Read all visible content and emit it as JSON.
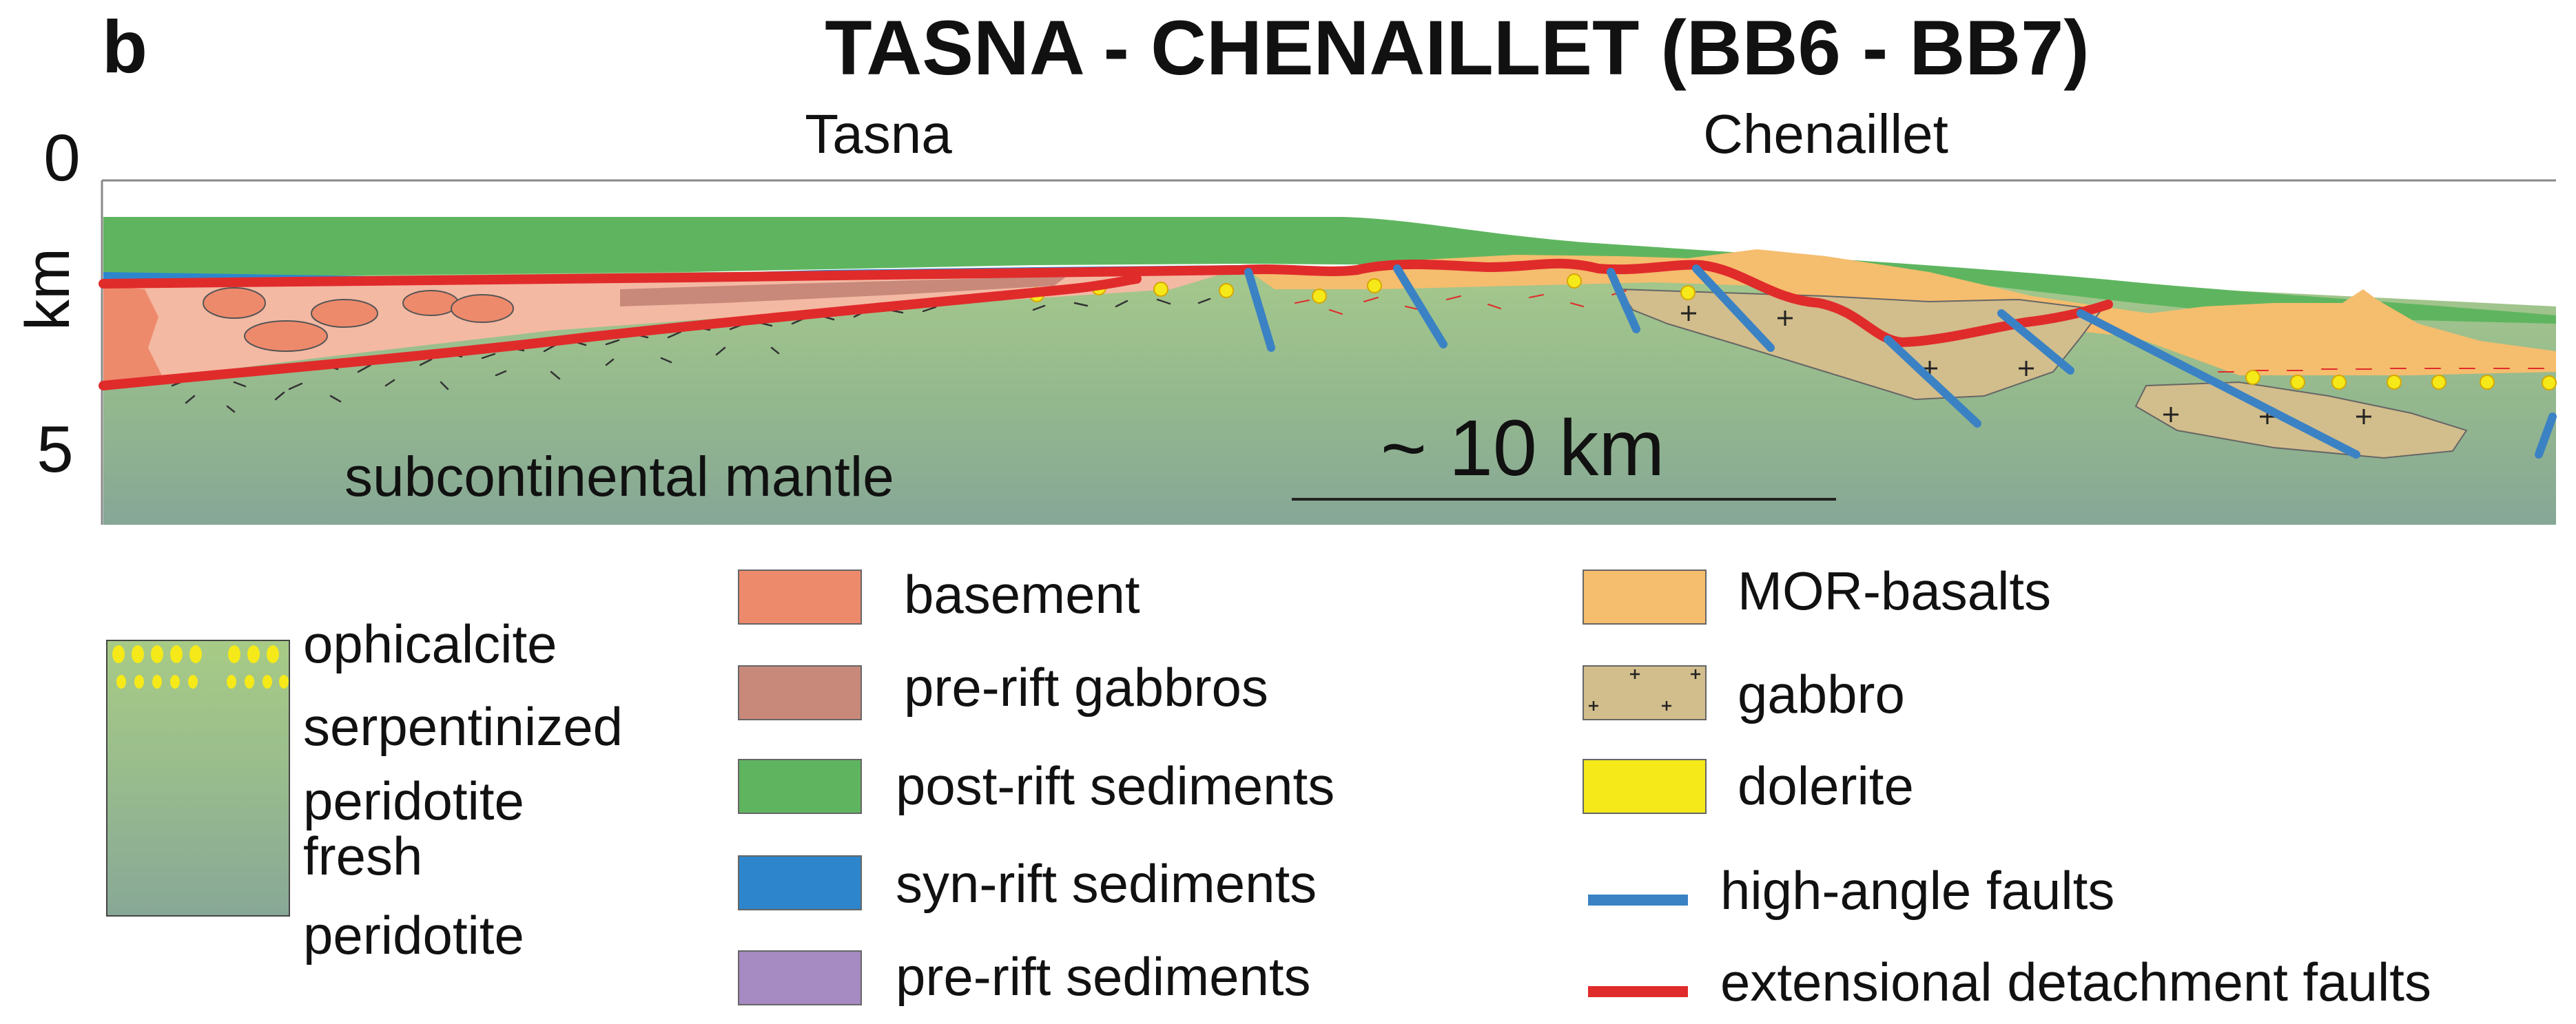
{
  "panel_letter": "b",
  "title": "TASNA - CHENAILLET (BB6 - BB7)",
  "section": {
    "labels": {
      "left": "Tasna",
      "right": "Chenaillet"
    },
    "depth_axis": {
      "unit": "km",
      "ticks": [
        "0",
        "5"
      ]
    },
    "mantle_label": "subcontinental mantle",
    "scale_bar": "~ 10 km"
  },
  "legend": {
    "gradient_labels": [
      "ophicalcite",
      "serpentinized",
      "peridotite",
      "fresh",
      "peridotite"
    ],
    "items": [
      {
        "label": "basement",
        "color": "#ee8a6c",
        "type": "box"
      },
      {
        "label": "pre-rift gabbros",
        "color": "#c8897a",
        "type": "box"
      },
      {
        "label": "post-rift sediments",
        "color": "#5fb55f",
        "type": "box"
      },
      {
        "label": "syn-rift sediments",
        "color": "#2d86cc",
        "type": "box"
      },
      {
        "label": "pre-rift sediments",
        "color": "#a68ac2",
        "type": "box"
      },
      {
        "label": "MOR-basalts",
        "color": "#f5bd6e",
        "type": "box"
      },
      {
        "label": "gabbro",
        "color": "#d2bd8c",
        "type": "box-crosses"
      },
      {
        "label": "dolerite",
        "color": "#f5e91a",
        "type": "box"
      },
      {
        "label": "high-angle faults",
        "color": "#3b82c4",
        "type": "line"
      },
      {
        "label": "extensional detachment faults",
        "color": "#e02b2b",
        "type": "line"
      }
    ]
  },
  "colors": {
    "mantle_top": "#9ec488",
    "mantle_bottom": "#8aab94",
    "post_rift": "#5fb55f",
    "syn_rift": "#2d86cc",
    "basement": "#ee8a6c",
    "basement_light": "#f4b9a3",
    "mor_basalt": "#f5bd6e",
    "gabbro": "#d2bd8c",
    "dolerite": "#f5e91a",
    "red_fault": "#e02b2b",
    "blue_fault": "#3b82c4"
  }
}
